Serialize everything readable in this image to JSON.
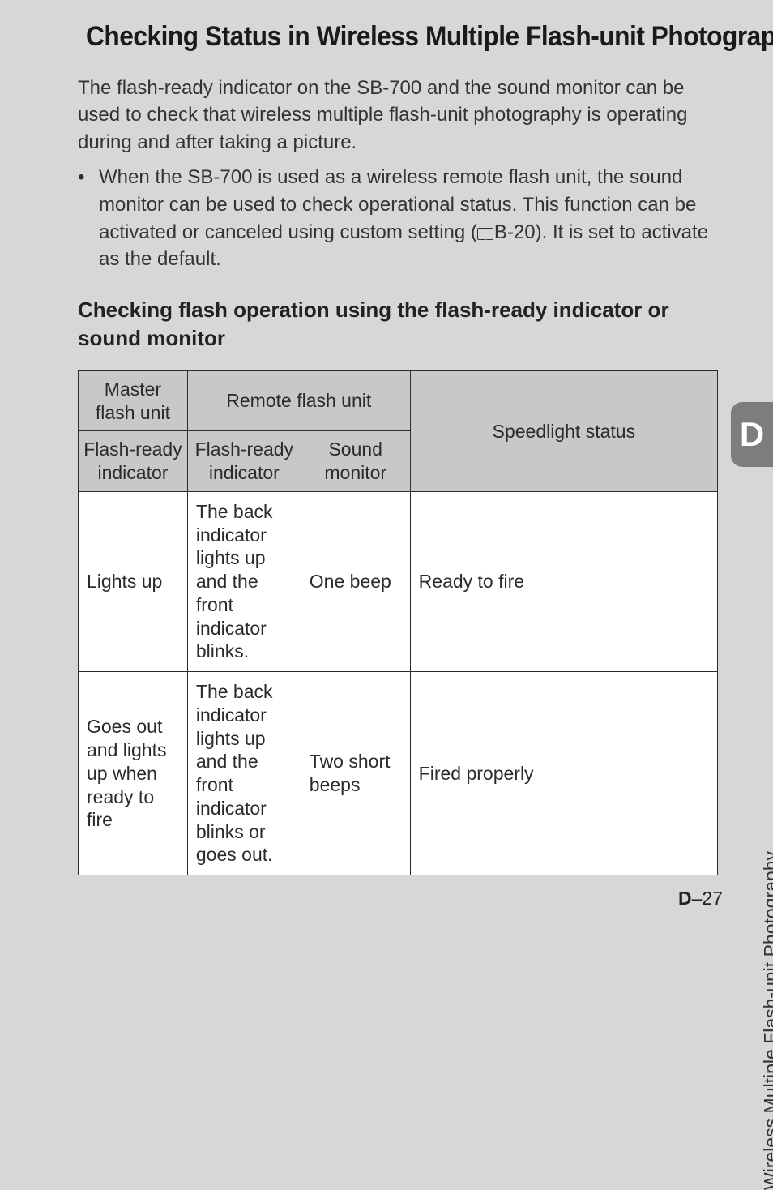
{
  "title": "Checking Status in Wireless Multiple Flash-unit Photography",
  "intro": "The flash-ready indicator on the SB-700 and the sound monitor can be used to check that wireless multiple flash-unit photography is operating during and after taking a picture.",
  "bullet": {
    "text_before_icon": "When the SB-700 is used as a wireless remote flash unit, the sound monitor can be used to check operational status. This function can be activated or canceled using custom setting (",
    "ref": "B-20",
    "text_after_icon": "). It is set to activate as the default."
  },
  "subheading": "Checking flash operation using the flash-ready indicator or sound monitor",
  "table": {
    "columns": [
      "Master flash unit",
      "Remote flash unit",
      "Speedlight status"
    ],
    "subcolumns": [
      "Flash-ready indicator",
      "Flash-ready indicator",
      "Sound monitor"
    ],
    "rows": [
      [
        "Lights up",
        "The back indicator lights up and the front indicator blinks.",
        "One beep",
        "Ready to fire"
      ],
      [
        "Goes out and lights up when ready to fire",
        "The back indicator lights up and the front indicator blinks or goes out.",
        "Two short beeps",
        "Fired properly"
      ]
    ],
    "header_bg": "#c7c8c9",
    "cell_bg": "#ffffff",
    "border_color": "#2b2b2b",
    "font_size": 23
  },
  "side": {
    "tab_letter": "D",
    "tab_bg": "#7c7d7e",
    "label": "Wireless Multiple Flash-unit Photography"
  },
  "page_number": {
    "section": "D",
    "sep": "–",
    "num": "27"
  },
  "colors": {
    "page_bg": "#d6d7d8",
    "title_bar": "#9a9b9c",
    "text": "#2b2b2b"
  }
}
